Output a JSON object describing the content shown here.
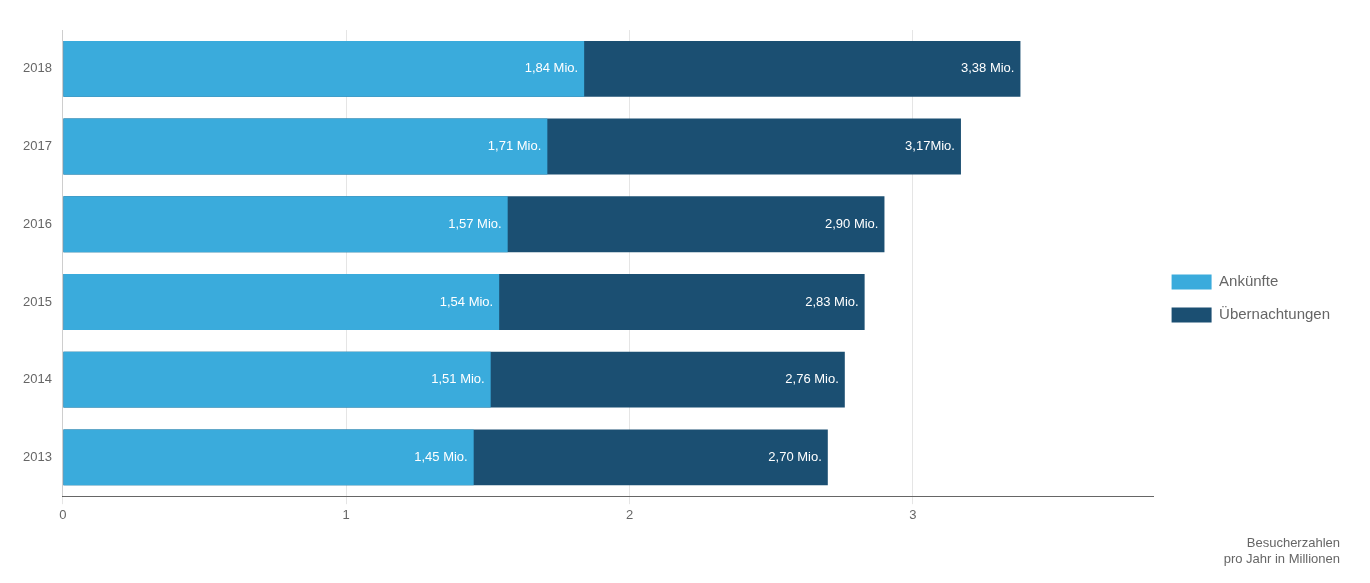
{
  "chart_data": {
    "type": "bar",
    "orientation": "horizontal",
    "categories": [
      "2018",
      "2017",
      "2016",
      "2015",
      "2014",
      "2013"
    ],
    "series": [
      {
        "name": "Ankünfte",
        "color": "#3aabdc",
        "values": [
          1.84,
          1.71,
          1.57,
          1.54,
          1.51,
          1.45
        ],
        "value_labels": [
          "1,84 Mio.",
          "1,71 Mio.",
          "1,57 Mio.",
          "1,54 Mio.",
          "1,51 Mio.",
          "1,45 Mio."
        ]
      },
      {
        "name": "Übernachtungen",
        "color": "#1b4f72",
        "values": [
          3.38,
          3.17,
          2.9,
          2.83,
          2.76,
          2.7
        ],
        "value_labels": [
          "3,38 Mio.",
          "3,17Mio.",
          "2,90 Mio.",
          "2,83 Mio.",
          "2,76 Mio.",
          "2,70 Mio."
        ]
      }
    ],
    "xlim": [
      0,
      3.85
    ],
    "xticks": [
      0,
      1,
      2,
      3
    ],
    "grid": true,
    "legend": "right",
    "data_labels": true,
    "annotations": [
      "Besucherzahlen\npro Jahr in Millionen"
    ]
  }
}
